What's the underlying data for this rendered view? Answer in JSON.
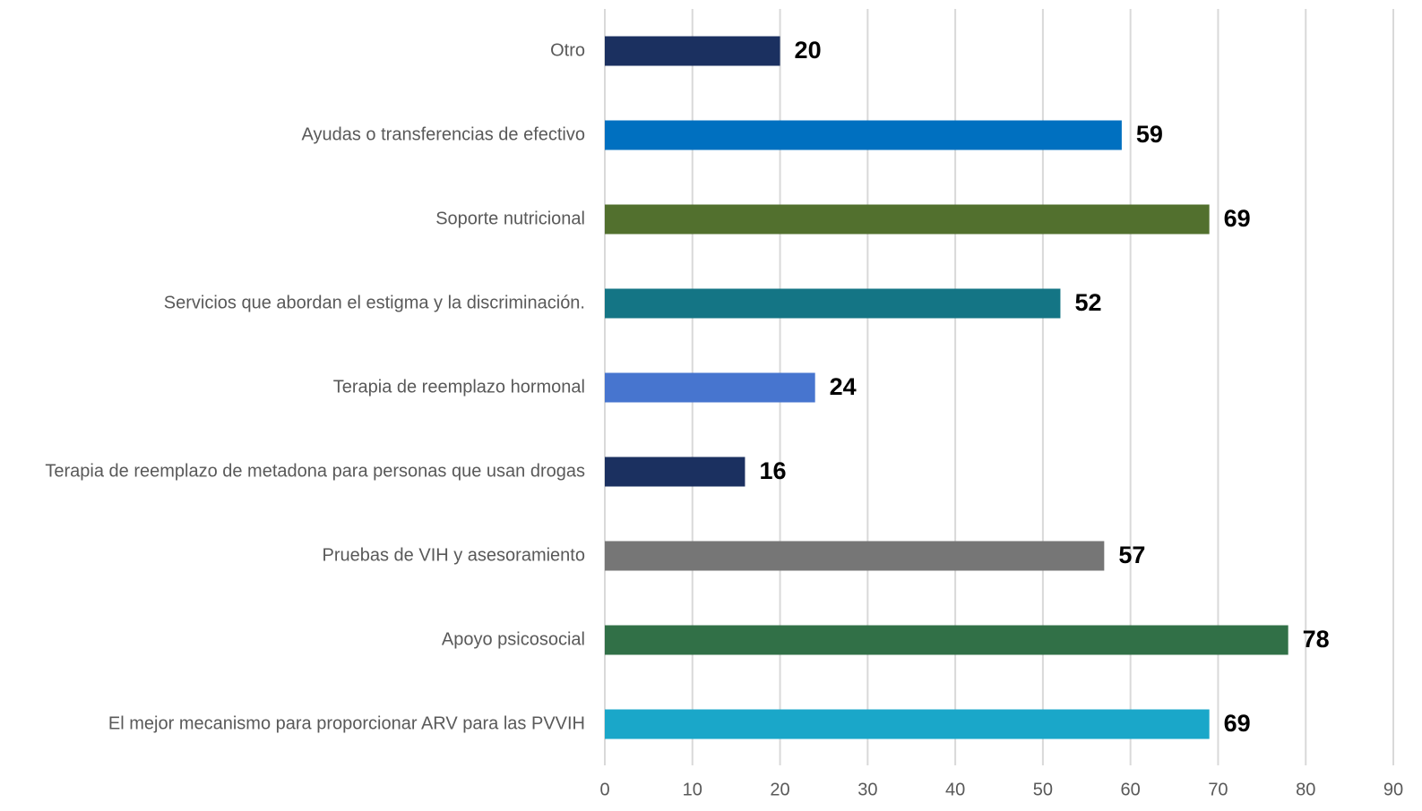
{
  "chart_data": {
    "type": "bar",
    "orientation": "horizontal",
    "categories": [
      "Otro",
      "Ayudas o transferencias de efectivo",
      "Soporte nutricional",
      "Servicios que abordan el estigma y la discriminación.",
      "Terapia de reemplazo hormonal",
      "Terapia de reemplazo de metadona para personas que usan drogas",
      "Pruebas de VIH y asesoramiento",
      "Apoyo psicosocial",
      "El mejor mecanismo para proporcionar ARV para las PVVIH"
    ],
    "values": [
      20,
      59,
      69,
      52,
      24,
      16,
      57,
      78,
      69
    ],
    "colors": [
      "#1b3060",
      "#0070c0",
      "#52702e",
      "#147585",
      "#4775cf",
      "#1b3060",
      "#767676",
      "#317047",
      "#1aa7c9"
    ],
    "xlim": [
      0,
      90
    ],
    "xticks": [
      0,
      10,
      20,
      30,
      40,
      50,
      60,
      70,
      80,
      90
    ],
    "grid": true
  }
}
